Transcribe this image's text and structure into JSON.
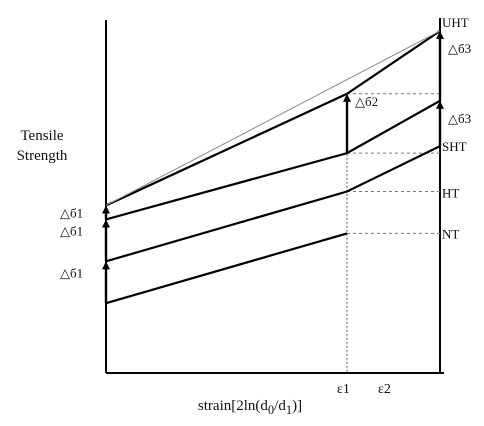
{
  "chart_data": {
    "type": "line",
    "ylabel": "Tensile\nStrength",
    "xlabel": "strain[2ln(d0/d1)]",
    "x_ticks": [
      {
        "label": "ε1",
        "value": 1
      },
      {
        "label": "ε2",
        "value": 2
      }
    ],
    "series": [
      {
        "name": "NT",
        "points": [
          [
            0,
            1.0
          ],
          [
            1,
            2.0
          ]
        ]
      },
      {
        "name": "HT",
        "points": [
          [
            0,
            1.6
          ],
          [
            1,
            2.6
          ],
          [
            2,
            3.25
          ]
        ]
      },
      {
        "name": "SHT",
        "points": [
          [
            0,
            2.2
          ],
          [
            1,
            3.15
          ],
          [
            2,
            3.9
          ]
        ]
      },
      {
        "name": "UHT",
        "points": [
          [
            0,
            2.4
          ],
          [
            1,
            4.0
          ],
          [
            2,
            4.9
          ]
        ]
      }
    ],
    "thin_lines": [
      {
        "points": [
          [
            0,
            2.4
          ],
          [
            2,
            4.9
          ]
        ]
      }
    ],
    "delta_labels": [
      {
        "text": "△б1",
        "at": [
          0,
          1.6
        ]
      },
      {
        "text": "△б1",
        "at": [
          0,
          2.2
        ]
      },
      {
        "text": "△б1",
        "at": [
          0,
          2.4
        ]
      },
      {
        "text": "△б2",
        "at": [
          1,
          4.0
        ]
      },
      {
        "text": "△б3",
        "at": [
          2,
          3.9
        ]
      },
      {
        "text": "△б3",
        "at": [
          2,
          4.9
        ]
      }
    ],
    "end_labels": [
      "NT",
      "HT",
      "SHT",
      "UHT"
    ]
  },
  "text": {
    "ylabel_line1": "Tensile",
    "ylabel_line2": "Strength",
    "xlabel": "strain[2ln(d0/d1)]"
  }
}
